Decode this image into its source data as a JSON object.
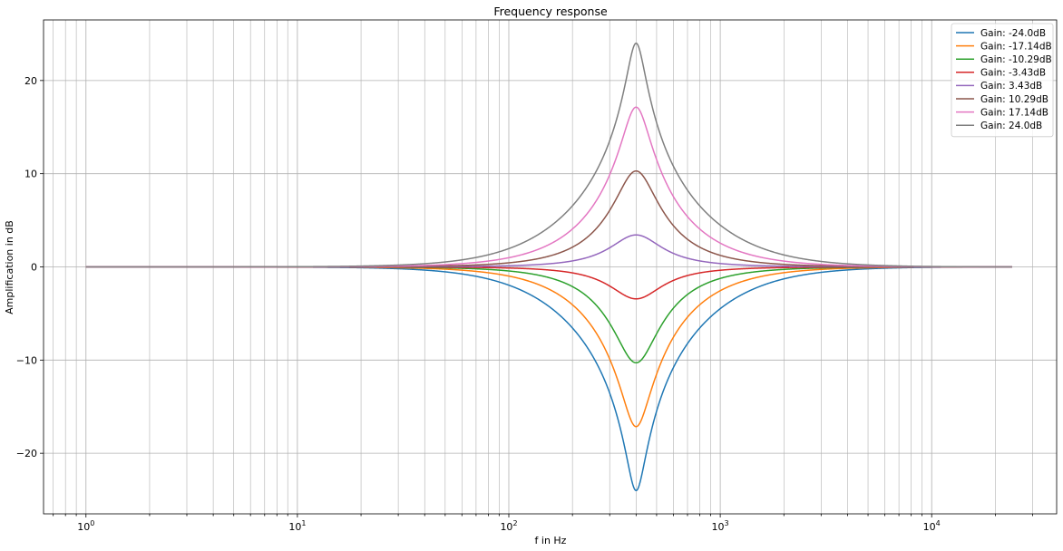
{
  "chart_data": {
    "type": "line",
    "title": "Frequency response",
    "xlabel": "f in Hz",
    "ylabel": "Amplification in dB",
    "xscale": "log",
    "xlim": [
      0.63,
      39000
    ],
    "ylim": [
      -26.5,
      26.5
    ],
    "grid": true,
    "grid_minor_x": true,
    "legend_position": "top-right",
    "x_tick_labels": [
      {
        "value": 1,
        "base": "10",
        "exp": "0"
      },
      {
        "value": 10,
        "base": "10",
        "exp": "1"
      },
      {
        "value": 100,
        "base": "10",
        "exp": "2"
      },
      {
        "value": 1000,
        "base": "10",
        "exp": "3"
      },
      {
        "value": 10000,
        "base": "10",
        "exp": "4"
      }
    ],
    "y_ticks": [
      -20,
      -10,
      0,
      10,
      20
    ],
    "y_tick_labels": [
      "−20",
      "−10",
      "0",
      "10",
      "20"
    ],
    "x_range": [
      1,
      24000
    ],
    "center_frequency": 400,
    "q_factor": 1.4,
    "series": [
      {
        "name": "Gain: -24.0dB",
        "gain": -24.0,
        "color": "#1f77b4"
      },
      {
        "name": "Gain: -17.14dB",
        "gain": -17.14,
        "color": "#ff7f0e"
      },
      {
        "name": "Gain: -10.29dB",
        "gain": -10.29,
        "color": "#2ca02c"
      },
      {
        "name": "Gain: -3.43dB",
        "gain": -3.43,
        "color": "#d62728"
      },
      {
        "name": "Gain: 3.43dB",
        "gain": 3.43,
        "color": "#9467bd"
      },
      {
        "name": "Gain: 10.29dB",
        "gain": 10.29,
        "color": "#8c564b"
      },
      {
        "name": "Gain: 17.14dB",
        "gain": 17.14,
        "color": "#e377c2"
      },
      {
        "name": "Gain: 24.0dB",
        "gain": 24.0,
        "color": "#7f7f7f"
      }
    ]
  }
}
